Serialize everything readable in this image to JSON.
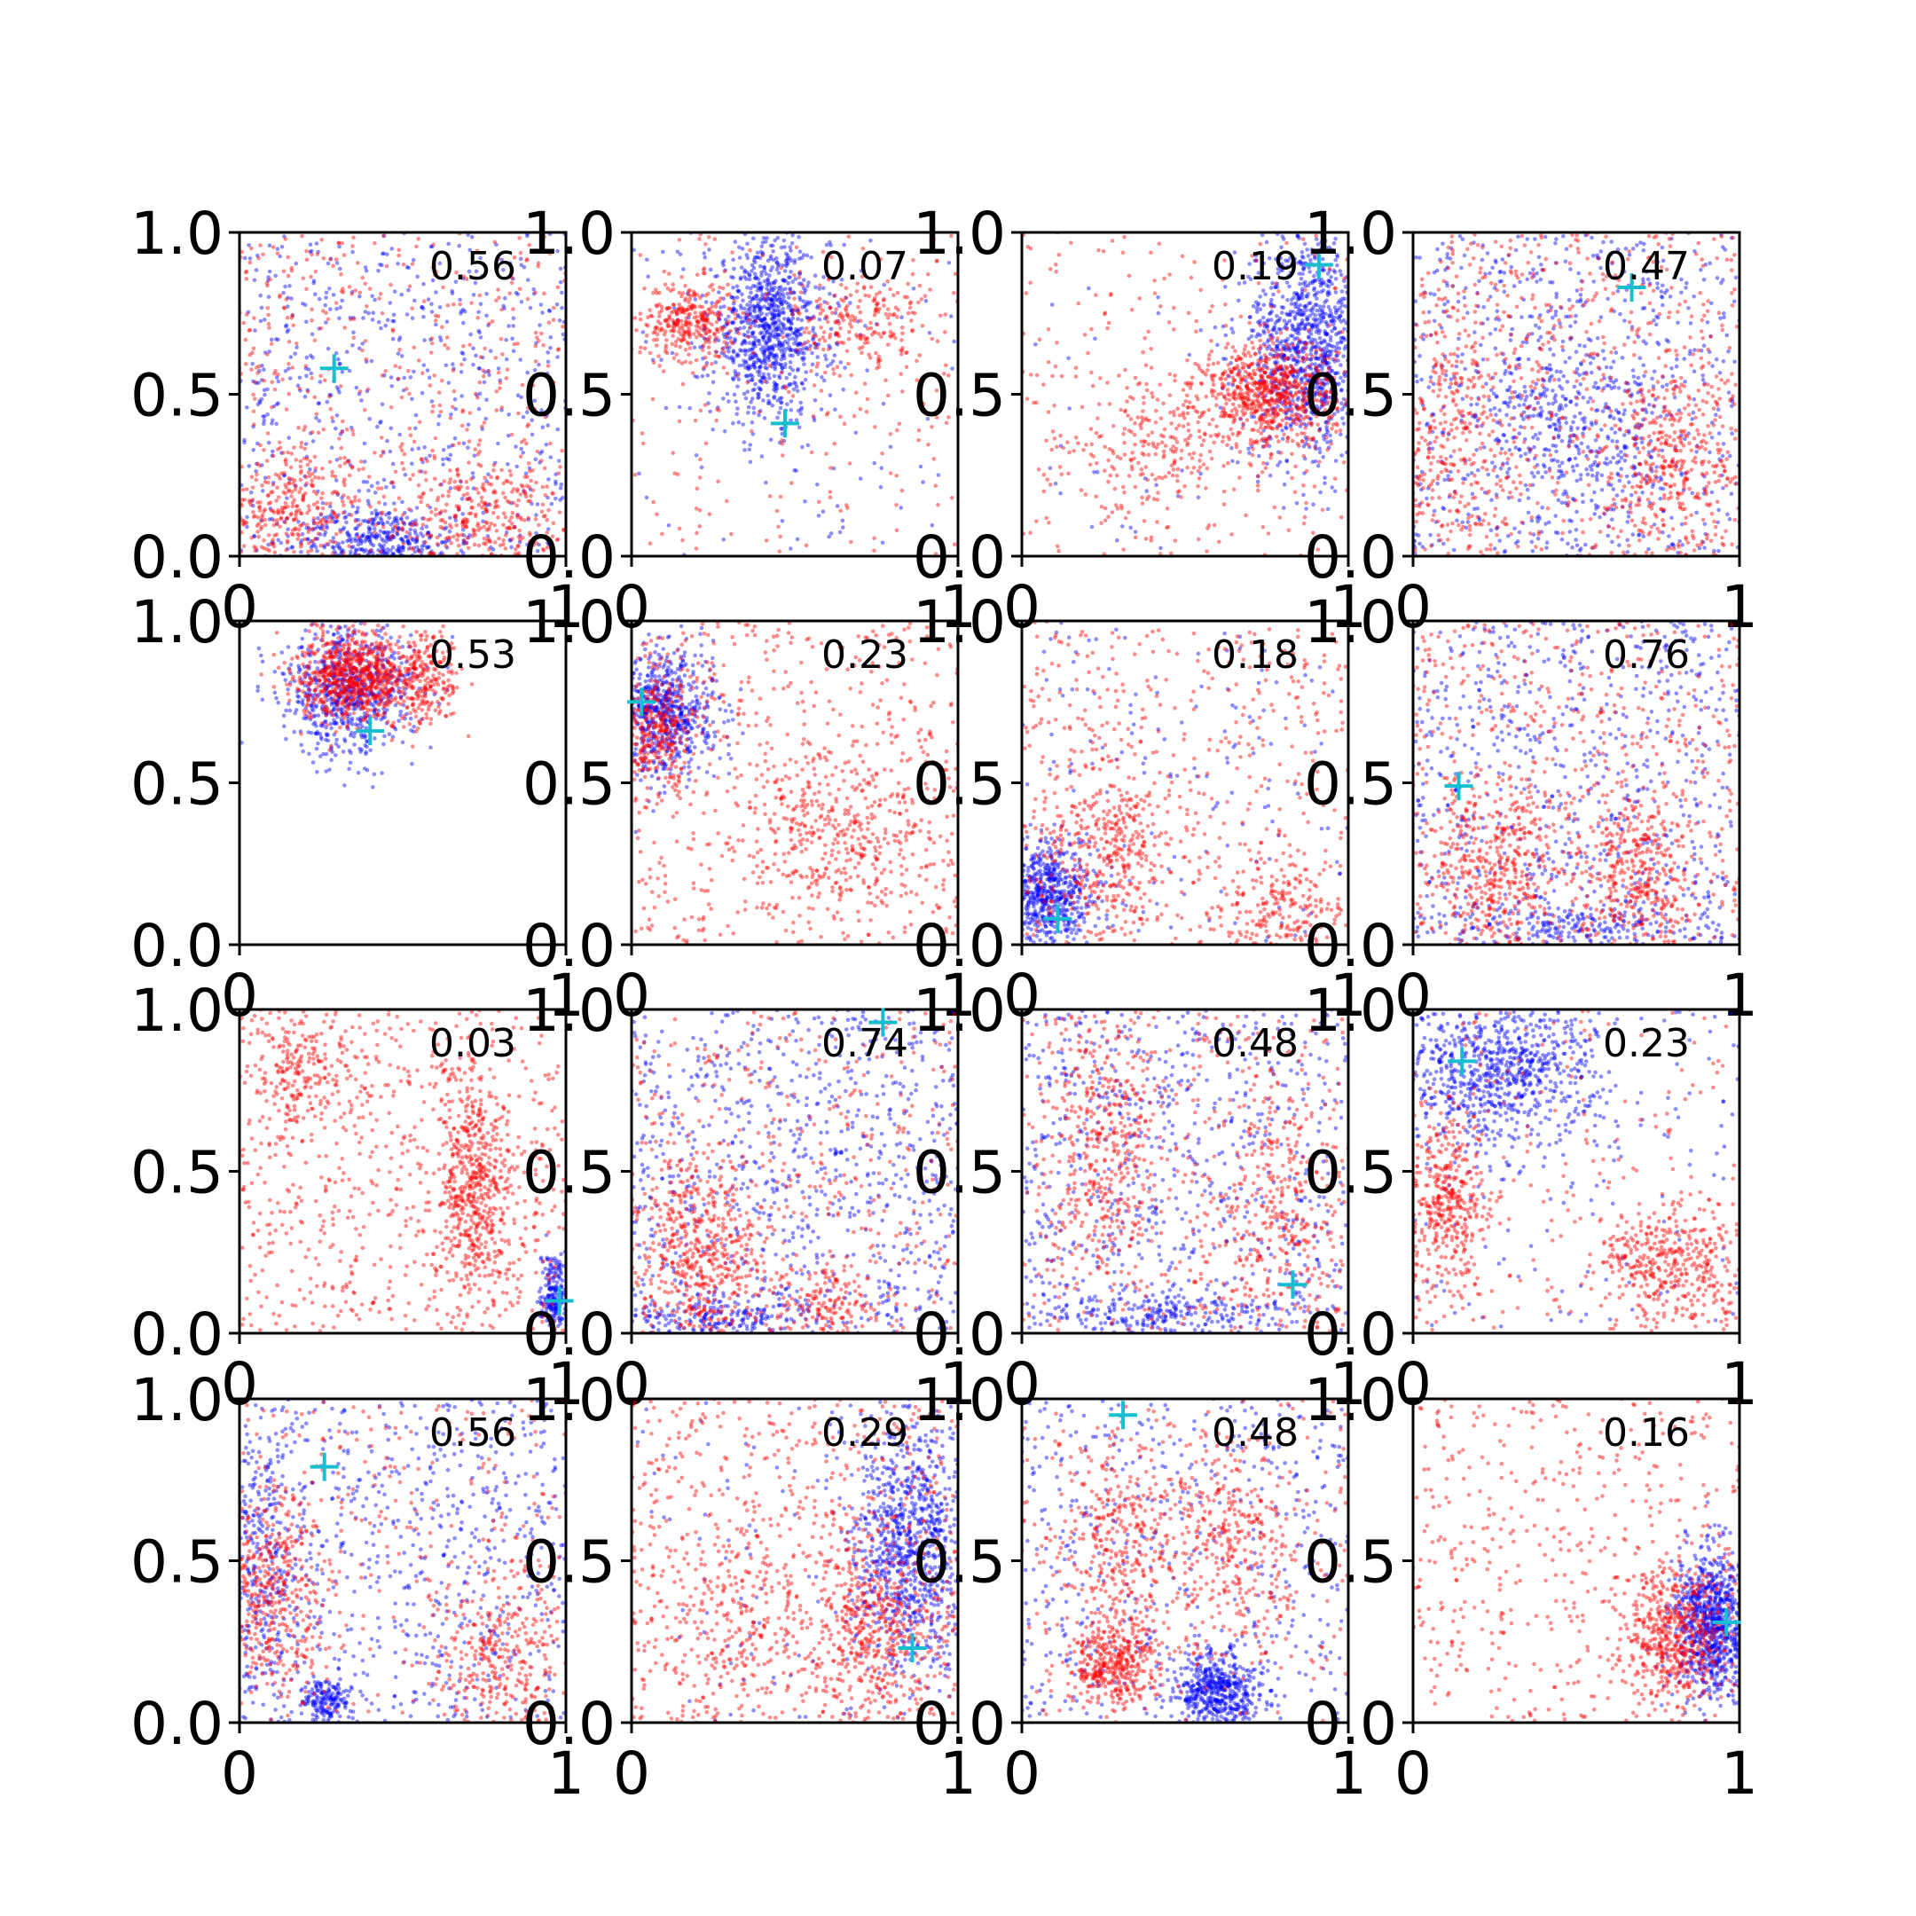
{
  "colors": {
    "series_a": "#ff0000",
    "series_b": "#0000ff",
    "marker": "#17becf",
    "axes": "#000000",
    "background": "#ffffff"
  },
  "chart_data": {
    "type": "scatter",
    "layout": "4x4 grid of scatter panels",
    "xlim": [
      0,
      1
    ],
    "ylim": [
      0,
      1
    ],
    "x_tick_labels": [
      "0",
      "1"
    ],
    "y_tick_labels": [
      "0.0",
      "0.5",
      "1.0"
    ],
    "grid": false,
    "legend": "none",
    "series_colors": [
      "red",
      "blue"
    ],
    "marker_symbol": "+",
    "panels": [
      {
        "score": "0.56",
        "marker": [
          0.29,
          0.58
        ],
        "red_clusters": [
          [
            0.15,
            0.15,
            0.12,
            0.1,
            300
          ],
          [
            0.75,
            0.12,
            0.12,
            0.08,
            250
          ]
        ],
        "blue_clusters": [
          [
            0.42,
            0.05,
            0.12,
            0.05,
            350
          ]
        ],
        "red_uniform": 500,
        "blue_uniform": 600
      },
      {
        "score": "0.07",
        "marker": [
          0.47,
          0.41
        ],
        "red_clusters": [
          [
            0.18,
            0.73,
            0.07,
            0.06,
            300
          ],
          [
            0.7,
            0.72,
            0.1,
            0.08,
            200
          ]
        ],
        "blue_clusters": [
          [
            0.42,
            0.7,
            0.09,
            0.14,
            900
          ]
        ],
        "red_uniform": 200,
        "blue_uniform": 100
      },
      {
        "score": "0.19",
        "marker": [
          0.91,
          0.9
        ],
        "red_clusters": [
          [
            0.4,
            0.35,
            0.12,
            0.1,
            200
          ],
          [
            0.76,
            0.5,
            0.1,
            0.08,
            700
          ]
        ],
        "blue_clusters": [
          [
            0.88,
            0.65,
            0.09,
            0.18,
            1000
          ]
        ],
        "red_uniform": 250,
        "blue_uniform": 50
      },
      {
        "score": "0.47",
        "marker": [
          0.67,
          0.83
        ],
        "red_clusters": [
          [
            0.1,
            0.4,
            0.1,
            0.2,
            300
          ],
          [
            0.8,
            0.3,
            0.1,
            0.15,
            300
          ]
        ],
        "blue_clusters": [
          [
            0.5,
            0.4,
            0.15,
            0.15,
            300
          ]
        ],
        "red_uniform": 600,
        "blue_uniform": 700
      },
      {
        "score": "0.53",
        "marker": [
          0.4,
          0.66
        ],
        "red_clusters": [
          [
            0.36,
            0.83,
            0.09,
            0.07,
            800
          ],
          [
            0.58,
            0.82,
            0.05,
            0.07,
            200
          ]
        ],
        "blue_clusters": [
          [
            0.33,
            0.78,
            0.1,
            0.1,
            700
          ]
        ],
        "red_uniform": 0,
        "blue_uniform": 0
      },
      {
        "score": "0.23",
        "marker": [
          0.03,
          0.75
        ],
        "red_clusters": [
          [
            0.08,
            0.65,
            0.06,
            0.08,
            300
          ],
          [
            0.62,
            0.35,
            0.15,
            0.12,
            300
          ]
        ],
        "blue_clusters": [
          [
            0.1,
            0.72,
            0.08,
            0.1,
            700
          ]
        ],
        "red_uniform": 600,
        "blue_uniform": 0
      },
      {
        "score": "0.18",
        "marker": [
          0.11,
          0.08
        ],
        "red_clusters": [
          [
            0.28,
            0.3,
            0.1,
            0.15,
            350
          ],
          [
            0.8,
            0.1,
            0.1,
            0.08,
            200
          ]
        ],
        "blue_clusters": [
          [
            0.08,
            0.15,
            0.07,
            0.08,
            600
          ]
        ],
        "red_uniform": 450,
        "blue_uniform": 150
      },
      {
        "score": "0.76",
        "marker": [
          0.14,
          0.49
        ],
        "red_clusters": [
          [
            0.25,
            0.25,
            0.1,
            0.15,
            400
          ],
          [
            0.68,
            0.22,
            0.08,
            0.12,
            300
          ]
        ],
        "blue_clusters": [
          [
            0.5,
            0.05,
            0.2,
            0.04,
            200
          ]
        ],
        "red_uniform": 600,
        "blue_uniform": 700
      },
      {
        "score": "0.03",
        "marker": [
          0.98,
          0.1
        ],
        "red_clusters": [
          [
            0.72,
            0.45,
            0.06,
            0.18,
            500
          ],
          [
            0.2,
            0.8,
            0.08,
            0.1,
            200
          ]
        ],
        "blue_clusters": [
          [
            0.96,
            0.12,
            0.02,
            0.06,
            200
          ]
        ],
        "red_uniform": 700,
        "blue_uniform": 0
      },
      {
        "score": "0.74",
        "marker": [
          0.77,
          0.96
        ],
        "red_clusters": [
          [
            0.2,
            0.25,
            0.1,
            0.15,
            500
          ],
          [
            0.6,
            0.1,
            0.08,
            0.06,
            150
          ]
        ],
        "blue_clusters": [
          [
            0.3,
            0.05,
            0.15,
            0.04,
            200
          ]
        ],
        "red_uniform": 400,
        "blue_uniform": 800
      },
      {
        "score": "0.48",
        "marker": [
          0.83,
          0.15
        ],
        "red_clusters": [
          [
            0.25,
            0.55,
            0.08,
            0.2,
            350
          ],
          [
            0.8,
            0.4,
            0.1,
            0.2,
            300
          ]
        ],
        "blue_clusters": [
          [
            0.4,
            0.05,
            0.2,
            0.04,
            250
          ]
        ],
        "red_uniform": 400,
        "blue_uniform": 700
      },
      {
        "score": "0.23",
        "marker": [
          0.15,
          0.84
        ],
        "red_clusters": [
          [
            0.1,
            0.4,
            0.06,
            0.15,
            400
          ],
          [
            0.8,
            0.2,
            0.12,
            0.1,
            400
          ]
        ],
        "blue_clusters": [
          [
            0.25,
            0.8,
            0.15,
            0.12,
            800
          ]
        ],
        "red_uniform": 200,
        "blue_uniform": 150
      },
      {
        "score": "0.56",
        "marker": [
          0.26,
          0.79
        ],
        "red_clusters": [
          [
            0.1,
            0.4,
            0.08,
            0.15,
            400
          ],
          [
            0.8,
            0.2,
            0.1,
            0.15,
            300
          ]
        ],
        "blue_clusters": [
          [
            0.26,
            0.07,
            0.03,
            0.03,
            150
          ],
          [
            0.06,
            0.5,
            0.06,
            0.2,
            250
          ]
        ],
        "red_uniform": 300,
        "blue_uniform": 700
      },
      {
        "score": "0.29",
        "marker": [
          0.86,
          0.23
        ],
        "red_clusters": [
          [
            0.75,
            0.3,
            0.1,
            0.15,
            400
          ],
          [
            0.3,
            0.25,
            0.15,
            0.15,
            200
          ]
        ],
        "blue_clusters": [
          [
            0.85,
            0.55,
            0.09,
            0.2,
            900
          ]
        ],
        "red_uniform": 700,
        "blue_uniform": 100
      },
      {
        "score": "0.48",
        "marker": [
          0.31,
          0.95
        ],
        "red_clusters": [
          [
            0.28,
            0.18,
            0.07,
            0.07,
            400
          ],
          [
            0.65,
            0.55,
            0.1,
            0.15,
            300
          ],
          [
            0.3,
            0.55,
            0.1,
            0.15,
            300
          ]
        ],
        "blue_clusters": [
          [
            0.6,
            0.1,
            0.06,
            0.06,
            500
          ]
        ],
        "red_uniform": 250,
        "blue_uniform": 500
      },
      {
        "score": "0.16",
        "marker": [
          0.96,
          0.31
        ],
        "red_clusters": [
          [
            0.8,
            0.25,
            0.08,
            0.1,
            500
          ]
        ],
        "blue_clusters": [
          [
            0.92,
            0.3,
            0.06,
            0.12,
            900
          ]
        ],
        "red_uniform": 500,
        "blue_uniform": 0
      }
    ]
  }
}
